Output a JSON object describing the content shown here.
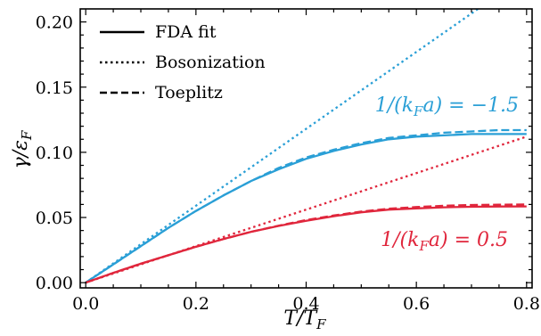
{
  "chart_data": {
    "type": "line",
    "xlabel": "T/T_F",
    "ylabel": "γ/ε_F",
    "xlim": [
      -0.01,
      0.81
    ],
    "ylim": [
      -0.004,
      0.21
    ],
    "xticks": [
      0.0,
      0.2,
      0.4,
      0.6,
      0.8
    ],
    "xtick_labels": [
      "0.0",
      "0.2",
      "0.4",
      "0.6",
      "0.8"
    ],
    "yticks": [
      0.0,
      0.05,
      0.1,
      0.15,
      0.2
    ],
    "ytick_labels": [
      "0.00",
      "0.05",
      "0.10",
      "0.15",
      "0.20"
    ],
    "legend": {
      "position": "top-left",
      "entries": [
        {
          "label": "FDA fit",
          "style": "solid"
        },
        {
          "label": "Bosonization",
          "style": "dotted"
        },
        {
          "label": "Toeplitz",
          "style": "dashed"
        }
      ]
    },
    "annotations": [
      {
        "text": "1/(k_F a) = −1.5",
        "color": "#2a9fd6"
      },
      {
        "text": "1/(k_F a) = 0.5",
        "color": "#e0263c"
      }
    ],
    "colors": {
      "blue": "#2a9fd6",
      "red": "#e0263c"
    },
    "series": [
      {
        "color": "blue",
        "style": "solid",
        "x": [
          0,
          0.05,
          0.1,
          0.15,
          0.2,
          0.25,
          0.3,
          0.35,
          0.4,
          0.45,
          0.5,
          0.55,
          0.6,
          0.65,
          0.7,
          0.75,
          0.8
        ],
        "values": [
          0,
          0.014,
          0.028,
          0.042,
          0.055,
          0.067,
          0.078,
          0.087,
          0.095,
          0.101,
          0.106,
          0.11,
          0.112,
          0.113,
          0.114,
          0.114,
          0.114
        ]
      },
      {
        "color": "blue",
        "style": "dashed",
        "x": [
          0,
          0.05,
          0.1,
          0.15,
          0.2,
          0.25,
          0.3,
          0.35,
          0.4,
          0.45,
          0.5,
          0.55,
          0.6,
          0.65,
          0.7,
          0.75,
          0.8
        ],
        "values": [
          0,
          0.014,
          0.028,
          0.042,
          0.055,
          0.067,
          0.078,
          0.088,
          0.096,
          0.102,
          0.107,
          0.111,
          0.113,
          0.115,
          0.116,
          0.117,
          0.117
        ]
      },
      {
        "color": "blue",
        "style": "dotted",
        "x": [
          0,
          0.8
        ],
        "values": [
          0,
          0.236
        ]
      },
      {
        "color": "red",
        "style": "solid",
        "x": [
          0,
          0.05,
          0.1,
          0.15,
          0.2,
          0.25,
          0.3,
          0.35,
          0.4,
          0.45,
          0.5,
          0.55,
          0.6,
          0.65,
          0.7,
          0.75,
          0.8
        ],
        "values": [
          0,
          0.0075,
          0.0145,
          0.021,
          0.0275,
          0.0335,
          0.039,
          0.0435,
          0.0475,
          0.051,
          0.054,
          0.056,
          0.057,
          0.0578,
          0.0582,
          0.0584,
          0.0585
        ]
      },
      {
        "color": "red",
        "style": "dashed",
        "x": [
          0,
          0.05,
          0.1,
          0.15,
          0.2,
          0.25,
          0.3,
          0.35,
          0.4,
          0.45,
          0.5,
          0.55,
          0.6,
          0.65,
          0.7,
          0.75,
          0.8
        ],
        "values": [
          0,
          0.0075,
          0.0145,
          0.021,
          0.0275,
          0.0335,
          0.039,
          0.0437,
          0.048,
          0.0515,
          0.0545,
          0.0567,
          0.058,
          0.059,
          0.0596,
          0.0598,
          0.06
        ]
      },
      {
        "color": "red",
        "style": "dotted",
        "x": [
          0,
          0.8
        ],
        "values": [
          0,
          0.112
        ]
      }
    ]
  }
}
